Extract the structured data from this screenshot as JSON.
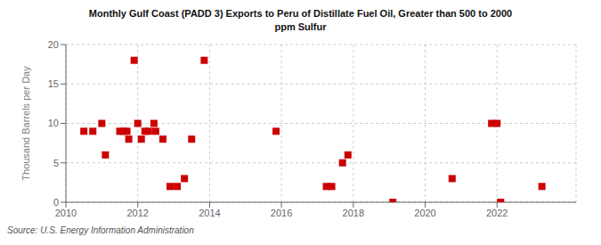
{
  "chart_data": {
    "type": "scatter",
    "title": "Monthly Gulf Coast (PADD 3) Exports to Peru of Distillate Fuel Oil, Greater than 500 to 2000\nppm Sulfur",
    "y_label": "Thousand Barrels per Day",
    "annotations": [
      "Source: U.S. Energy Information Administration"
    ],
    "x": [
      2010.5,
      2010.75,
      2011.0,
      2011.1,
      2011.5,
      2011.6,
      2011.7,
      2011.75,
      2011.9,
      2012.0,
      2012.1,
      2012.2,
      2012.3,
      2012.45,
      2012.5,
      2012.7,
      2012.9,
      2013.1,
      2013.3,
      2013.5,
      2013.85,
      2015.85,
      2017.25,
      2017.4,
      2017.7,
      2017.85,
      2019.1,
      2020.75,
      2021.85,
      2022.0,
      2022.1,
      2023.25
    ],
    "values": [
      9,
      9,
      10,
      6,
      9,
      9,
      9,
      8,
      18,
      10,
      8,
      9,
      9,
      10,
      9,
      8,
      2,
      2,
      3,
      8,
      18,
      9,
      2,
      2,
      5,
      6,
      0,
      3,
      10,
      10,
      0,
      2
    ],
    "color": "#cc0000",
    "marker": "square",
    "xlim": [
      2010.0,
      2024.2
    ],
    "xticks": [
      2010,
      2012,
      2014,
      2016,
      2018,
      2020,
      2022
    ],
    "ylim": [
      0,
      20
    ],
    "yticks": [
      0,
      5,
      10,
      15,
      20
    ],
    "grid": true
  }
}
